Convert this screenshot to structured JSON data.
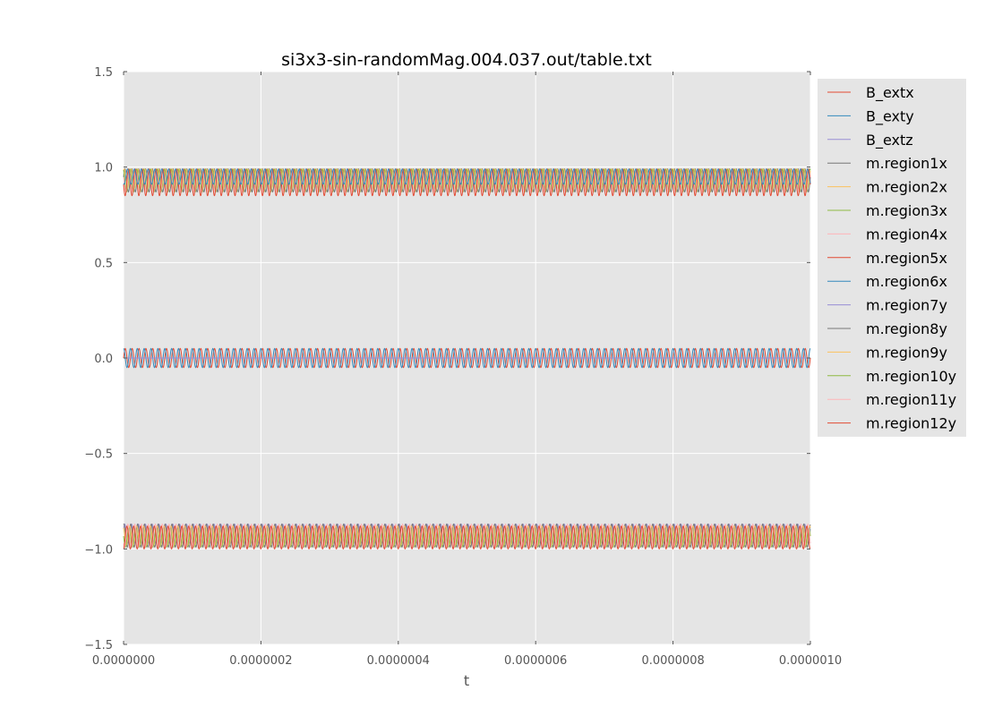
{
  "chart_data": {
    "type": "line",
    "title": "si3x3-sin-randomMag.004.037.out/table.txt",
    "xlabel": "t",
    "ylabel": "",
    "xlim": [
      0,
      1e-06
    ],
    "ylim": [
      -1.5,
      1.5
    ],
    "xticks": [
      0,
      2e-07,
      4e-07,
      6e-07,
      8e-07,
      1e-06
    ],
    "xtick_labels": [
      "0.0000000",
      "0.0000002",
      "0.0000004",
      "0.0000006",
      "0.0000008",
      "0.0000010"
    ],
    "yticks": [
      -1.5,
      -1.0,
      -0.5,
      0.0,
      0.5,
      1.0,
      1.5
    ],
    "ytick_labels": [
      "−1.5",
      "−1.0",
      "−0.5",
      "0.0",
      "0.5",
      "1.0",
      "1.5"
    ],
    "grid": true,
    "legend_position": "outside right, top",
    "background_color": "#e5e5e5",
    "oscillation_cycles": 100,
    "series": [
      {
        "name": "B_extx",
        "color": "#e24a33",
        "center": 0.0,
        "amplitude": 0.05,
        "phase": 0.0
      },
      {
        "name": "B_exty",
        "color": "#348abd",
        "center": 0.0,
        "amplitude": 0.05,
        "phase": 1.5708
      },
      {
        "name": "B_extz",
        "color": "#988ed5",
        "center": 0.0,
        "amplitude": 0.0,
        "phase": 0.0
      },
      {
        "name": "m.region1x",
        "color": "#777777",
        "center": 0.93,
        "amplitude": 0.06,
        "phase": 0.3
      },
      {
        "name": "m.region2x",
        "color": "#fbc15e",
        "center": 0.94,
        "amplitude": 0.05,
        "phase": 1.0
      },
      {
        "name": "m.region3x",
        "color": "#8eba42",
        "center": 0.93,
        "amplitude": 0.06,
        "phase": 2.0
      },
      {
        "name": "m.region4x",
        "color": "#ffb5b8",
        "center": 0.92,
        "amplitude": 0.05,
        "phase": 2.6
      },
      {
        "name": "m.region5x",
        "color": "#e24a33",
        "center": 0.92,
        "amplitude": 0.07,
        "phase": 3.3
      },
      {
        "name": "m.region6x",
        "color": "#348abd",
        "center": 0.95,
        "amplitude": 0.04,
        "phase": 4.2
      },
      {
        "name": "m.region7y",
        "color": "#988ed5",
        "center": -0.92,
        "amplitude": 0.05,
        "phase": 0.5
      },
      {
        "name": "m.region8y",
        "color": "#777777",
        "center": -0.93,
        "amplitude": 0.06,
        "phase": 1.3
      },
      {
        "name": "m.region9y",
        "color": "#fbc15e",
        "center": -0.93,
        "amplitude": 0.05,
        "phase": 2.2
      },
      {
        "name": "m.region10y",
        "color": "#8eba42",
        "center": -0.94,
        "amplitude": 0.05,
        "phase": 3.0
      },
      {
        "name": "m.region11y",
        "color": "#ffb5b8",
        "center": -0.93,
        "amplitude": 0.06,
        "phase": 3.9
      },
      {
        "name": "m.region12y",
        "color": "#e24a33",
        "center": -0.94,
        "amplitude": 0.06,
        "phase": 4.8
      }
    ]
  }
}
